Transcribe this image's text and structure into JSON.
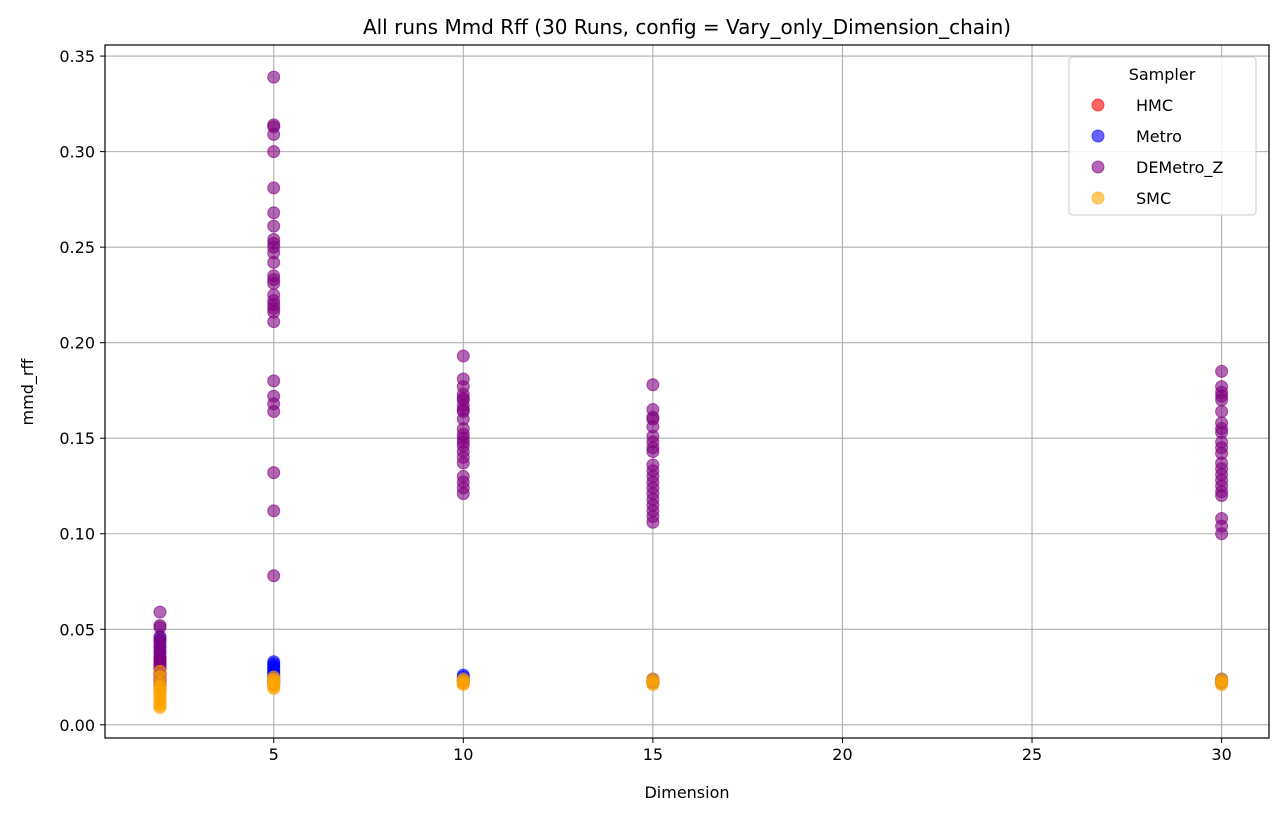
{
  "chart_data": {
    "type": "scatter",
    "title": "All runs Mmd Rff (30 Runs, config = Vary_only_Dimension_chain)",
    "xlabel": "Dimension",
    "ylabel": "mmd_rff",
    "xlim": [
      0.55,
      31.25
    ],
    "ylim": [
      -0.0069,
      0.3558
    ],
    "xticks": [
      5,
      10,
      15,
      20,
      25,
      30
    ],
    "xtick_labels": [
      "5",
      "10",
      "15",
      "20",
      "25",
      "30"
    ],
    "yticks": [
      0.0,
      0.05,
      0.1,
      0.15,
      0.2,
      0.25,
      0.3,
      0.35
    ],
    "ytick_labels": [
      "0.00",
      "0.05",
      "0.10",
      "0.15",
      "0.20",
      "0.25",
      "0.30",
      "0.35"
    ],
    "grid": true,
    "legend": {
      "title": "Sampler",
      "placement": "top-right"
    },
    "series": [
      {
        "name": "HMC",
        "color": "#ff0000",
        "points": [
          [
            2,
            0.021
          ],
          [
            2,
            0.024
          ],
          [
            2,
            0.027
          ],
          [
            2,
            0.018
          ],
          [
            5,
            0.021
          ],
          [
            5,
            0.023
          ],
          [
            5,
            0.025
          ],
          [
            10,
            0.022
          ],
          [
            10,
            0.023
          ],
          [
            15,
            0.022
          ],
          [
            15,
            0.023
          ],
          [
            30,
            0.022
          ],
          [
            30,
            0.023
          ]
        ]
      },
      {
        "name": "Metro",
        "color": "#0000ff",
        "points": [
          [
            2,
            0.046
          ],
          [
            2,
            0.044
          ],
          [
            2,
            0.041
          ],
          [
            2,
            0.038
          ],
          [
            2,
            0.035
          ],
          [
            2,
            0.032
          ],
          [
            2,
            0.029
          ],
          [
            2,
            0.026
          ],
          [
            2,
            0.023
          ],
          [
            2,
            0.02
          ],
          [
            5,
            0.033
          ],
          [
            5,
            0.032
          ],
          [
            5,
            0.031
          ],
          [
            5,
            0.03
          ],
          [
            5,
            0.029
          ],
          [
            5,
            0.028
          ],
          [
            5,
            0.027
          ],
          [
            5,
            0.026
          ],
          [
            5,
            0.025
          ],
          [
            5,
            0.024
          ],
          [
            5,
            0.023
          ],
          [
            5,
            0.022
          ],
          [
            10,
            0.026
          ],
          [
            10,
            0.025
          ],
          [
            10,
            0.024
          ],
          [
            10,
            0.023
          ],
          [
            15,
            0.024
          ],
          [
            15,
            0.023
          ],
          [
            15,
            0.022
          ],
          [
            30,
            0.024
          ],
          [
            30,
            0.023
          ],
          [
            30,
            0.022
          ]
        ]
      },
      {
        "name": "DEMetro_Z",
        "color": "#800080",
        "points": [
          [
            2,
            0.059
          ],
          [
            2,
            0.052
          ],
          [
            2,
            0.051
          ],
          [
            2,
            0.046
          ],
          [
            2,
            0.044
          ],
          [
            2,
            0.042
          ],
          [
            2,
            0.04
          ],
          [
            2,
            0.038
          ],
          [
            2,
            0.036
          ],
          [
            2,
            0.035
          ],
          [
            2,
            0.034
          ],
          [
            2,
            0.033
          ],
          [
            2,
            0.032
          ],
          [
            2,
            0.031
          ],
          [
            2,
            0.03
          ],
          [
            2,
            0.029
          ],
          [
            2,
            0.028
          ],
          [
            2,
            0.027
          ],
          [
            2,
            0.026
          ],
          [
            2,
            0.025
          ],
          [
            2,
            0.024
          ],
          [
            2,
            0.023
          ],
          [
            2,
            0.022
          ],
          [
            2,
            0.021
          ],
          [
            5,
            0.339
          ],
          [
            5,
            0.314
          ],
          [
            5,
            0.313
          ],
          [
            5,
            0.309
          ],
          [
            5,
            0.3
          ],
          [
            5,
            0.281
          ],
          [
            5,
            0.268
          ],
          [
            5,
            0.261
          ],
          [
            5,
            0.254
          ],
          [
            5,
            0.252
          ],
          [
            5,
            0.25
          ],
          [
            5,
            0.247
          ],
          [
            5,
            0.242
          ],
          [
            5,
            0.235
          ],
          [
            5,
            0.233
          ],
          [
            5,
            0.231
          ],
          [
            5,
            0.225
          ],
          [
            5,
            0.222
          ],
          [
            5,
            0.22
          ],
          [
            5,
            0.218
          ],
          [
            5,
            0.216
          ],
          [
            5,
            0.211
          ],
          [
            5,
            0.18
          ],
          [
            5,
            0.172
          ],
          [
            5,
            0.168
          ],
          [
            5,
            0.164
          ],
          [
            5,
            0.132
          ],
          [
            5,
            0.112
          ],
          [
            5,
            0.078
          ],
          [
            10,
            0.193
          ],
          [
            10,
            0.181
          ],
          [
            10,
            0.177
          ],
          [
            10,
            0.173
          ],
          [
            10,
            0.171
          ],
          [
            10,
            0.17
          ],
          [
            10,
            0.167
          ],
          [
            10,
            0.165
          ],
          [
            10,
            0.164
          ],
          [
            10,
            0.16
          ],
          [
            10,
            0.155
          ],
          [
            10,
            0.152
          ],
          [
            10,
            0.15
          ],
          [
            10,
            0.148
          ],
          [
            10,
            0.146
          ],
          [
            10,
            0.143
          ],
          [
            10,
            0.14
          ],
          [
            10,
            0.137
          ],
          [
            10,
            0.13
          ],
          [
            10,
            0.127
          ],
          [
            10,
            0.124
          ],
          [
            10,
            0.121
          ],
          [
            15,
            0.178
          ],
          [
            15,
            0.165
          ],
          [
            15,
            0.161
          ],
          [
            15,
            0.16
          ],
          [
            15,
            0.156
          ],
          [
            15,
            0.151
          ],
          [
            15,
            0.148
          ],
          [
            15,
            0.145
          ],
          [
            15,
            0.143
          ],
          [
            15,
            0.136
          ],
          [
            15,
            0.133
          ],
          [
            15,
            0.13
          ],
          [
            15,
            0.127
          ],
          [
            15,
            0.124
          ],
          [
            15,
            0.121
          ],
          [
            15,
            0.118
          ],
          [
            15,
            0.115
          ],
          [
            15,
            0.112
          ],
          [
            15,
            0.109
          ],
          [
            15,
            0.106
          ],
          [
            30,
            0.185
          ],
          [
            30,
            0.177
          ],
          [
            30,
            0.174
          ],
          [
            30,
            0.172
          ],
          [
            30,
            0.17
          ],
          [
            30,
            0.164
          ],
          [
            30,
            0.158
          ],
          [
            30,
            0.155
          ],
          [
            30,
            0.153
          ],
          [
            30,
            0.148
          ],
          [
            30,
            0.145
          ],
          [
            30,
            0.142
          ],
          [
            30,
            0.137
          ],
          [
            30,
            0.134
          ],
          [
            30,
            0.131
          ],
          [
            30,
            0.128
          ],
          [
            30,
            0.125
          ],
          [
            30,
            0.122
          ],
          [
            30,
            0.12
          ],
          [
            30,
            0.108
          ],
          [
            30,
            0.104
          ],
          [
            30,
            0.1
          ]
        ]
      },
      {
        "name": "SMC",
        "color": "#ffa500",
        "points": [
          [
            2,
            0.028
          ],
          [
            2,
            0.025
          ],
          [
            2,
            0.022
          ],
          [
            2,
            0.02
          ],
          [
            2,
            0.019
          ],
          [
            2,
            0.018
          ],
          [
            2,
            0.017
          ],
          [
            2,
            0.016
          ],
          [
            2,
            0.015
          ],
          [
            2,
            0.014
          ],
          [
            2,
            0.013
          ],
          [
            2,
            0.012
          ],
          [
            2,
            0.011
          ],
          [
            2,
            0.01
          ],
          [
            2,
            0.009
          ],
          [
            5,
            0.025
          ],
          [
            5,
            0.024
          ],
          [
            5,
            0.023
          ],
          [
            5,
            0.022
          ],
          [
            5,
            0.021
          ],
          [
            5,
            0.02
          ],
          [
            5,
            0.019
          ],
          [
            10,
            0.024
          ],
          [
            10,
            0.023
          ],
          [
            10,
            0.022
          ],
          [
            10,
            0.021
          ],
          [
            15,
            0.024
          ],
          [
            15,
            0.023
          ],
          [
            15,
            0.022
          ],
          [
            15,
            0.021
          ],
          [
            30,
            0.024
          ],
          [
            30,
            0.023
          ],
          [
            30,
            0.022
          ],
          [
            30,
            0.021
          ]
        ]
      }
    ]
  }
}
